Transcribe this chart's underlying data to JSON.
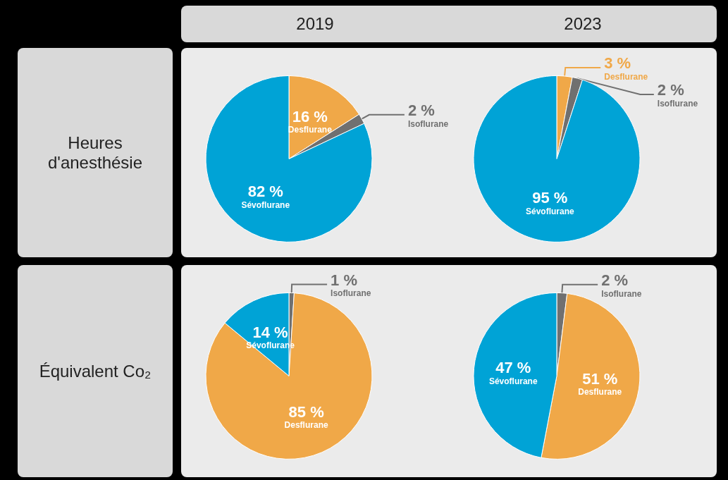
{
  "chart_data": [
    {
      "type": "pie",
      "title": "2019",
      "ylabel": "Heures d'anesthésie",
      "categories": [
        "Desflurane",
        "Isoflurane",
        "Sévoflurane"
      ],
      "values": [
        16,
        2,
        82
      ],
      "colors": [
        "#f0a848",
        "#707070",
        "#00a3d6"
      ],
      "value_labels": [
        "16 %",
        "2 %",
        "82 %"
      ]
    },
    {
      "type": "pie",
      "title": "2023",
      "categories": [
        "Desflurane",
        "Isoflurane",
        "Sévoflurane"
      ],
      "values": [
        3,
        2,
        95
      ],
      "colors": [
        "#f0a848",
        "#707070",
        "#00a3d6"
      ],
      "value_labels": [
        "3 %",
        "2 %",
        "95 %"
      ]
    },
    {
      "type": "pie",
      "ylabel": "Équivalent Co₂",
      "categories": [
        "Isoflurane",
        "Desflurane",
        "Sévoflurane"
      ],
      "values": [
        1,
        85,
        14
      ],
      "colors": [
        "#707070",
        "#f0a848",
        "#00a3d6"
      ],
      "value_labels": [
        "1 %",
        "85 %",
        "14 %"
      ]
    },
    {
      "type": "pie",
      "categories": [
        "Isoflurane",
        "Desflurane",
        "Sévoflurane"
      ],
      "values": [
        2,
        51,
        47
      ],
      "colors": [
        "#707070",
        "#f0a848",
        "#00a3d6"
      ],
      "value_labels": [
        "2 %",
        "51 %",
        "47 %"
      ]
    }
  ]
}
